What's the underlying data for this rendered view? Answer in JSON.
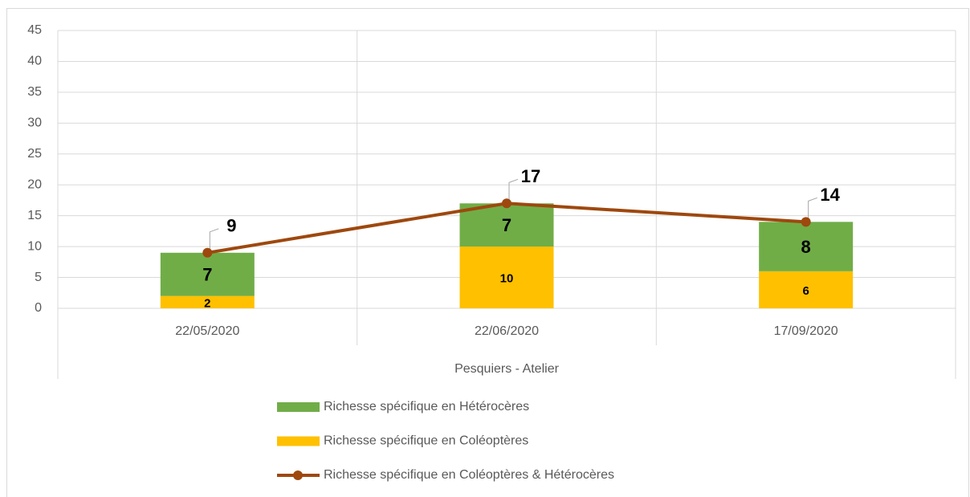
{
  "chart_data": {
    "type": "bar",
    "stacked": true,
    "categories": [
      "22/05/2020",
      "22/06/2020",
      "17/09/2020"
    ],
    "group_label": "Pesquiers - Atelier",
    "series": [
      {
        "name": "Richesse spécifique en Coléoptères",
        "type": "bar",
        "color": "#ffc000",
        "values": [
          2,
          10,
          6
        ]
      },
      {
        "name": "Richesse spécifique en Hétérocères",
        "type": "bar",
        "color": "#70ad47",
        "values": [
          7,
          7,
          8
        ]
      },
      {
        "name": "Richesse spécifique en Coléoptères & Hétérocères",
        "type": "line",
        "color": "#9e480e",
        "values": [
          9,
          17,
          14
        ]
      }
    ],
    "ylim": [
      0,
      45
    ],
    "yticks": [
      0,
      5,
      10,
      15,
      20,
      25,
      30,
      35,
      40,
      45
    ],
    "grid": true,
    "legend": "bottom"
  }
}
